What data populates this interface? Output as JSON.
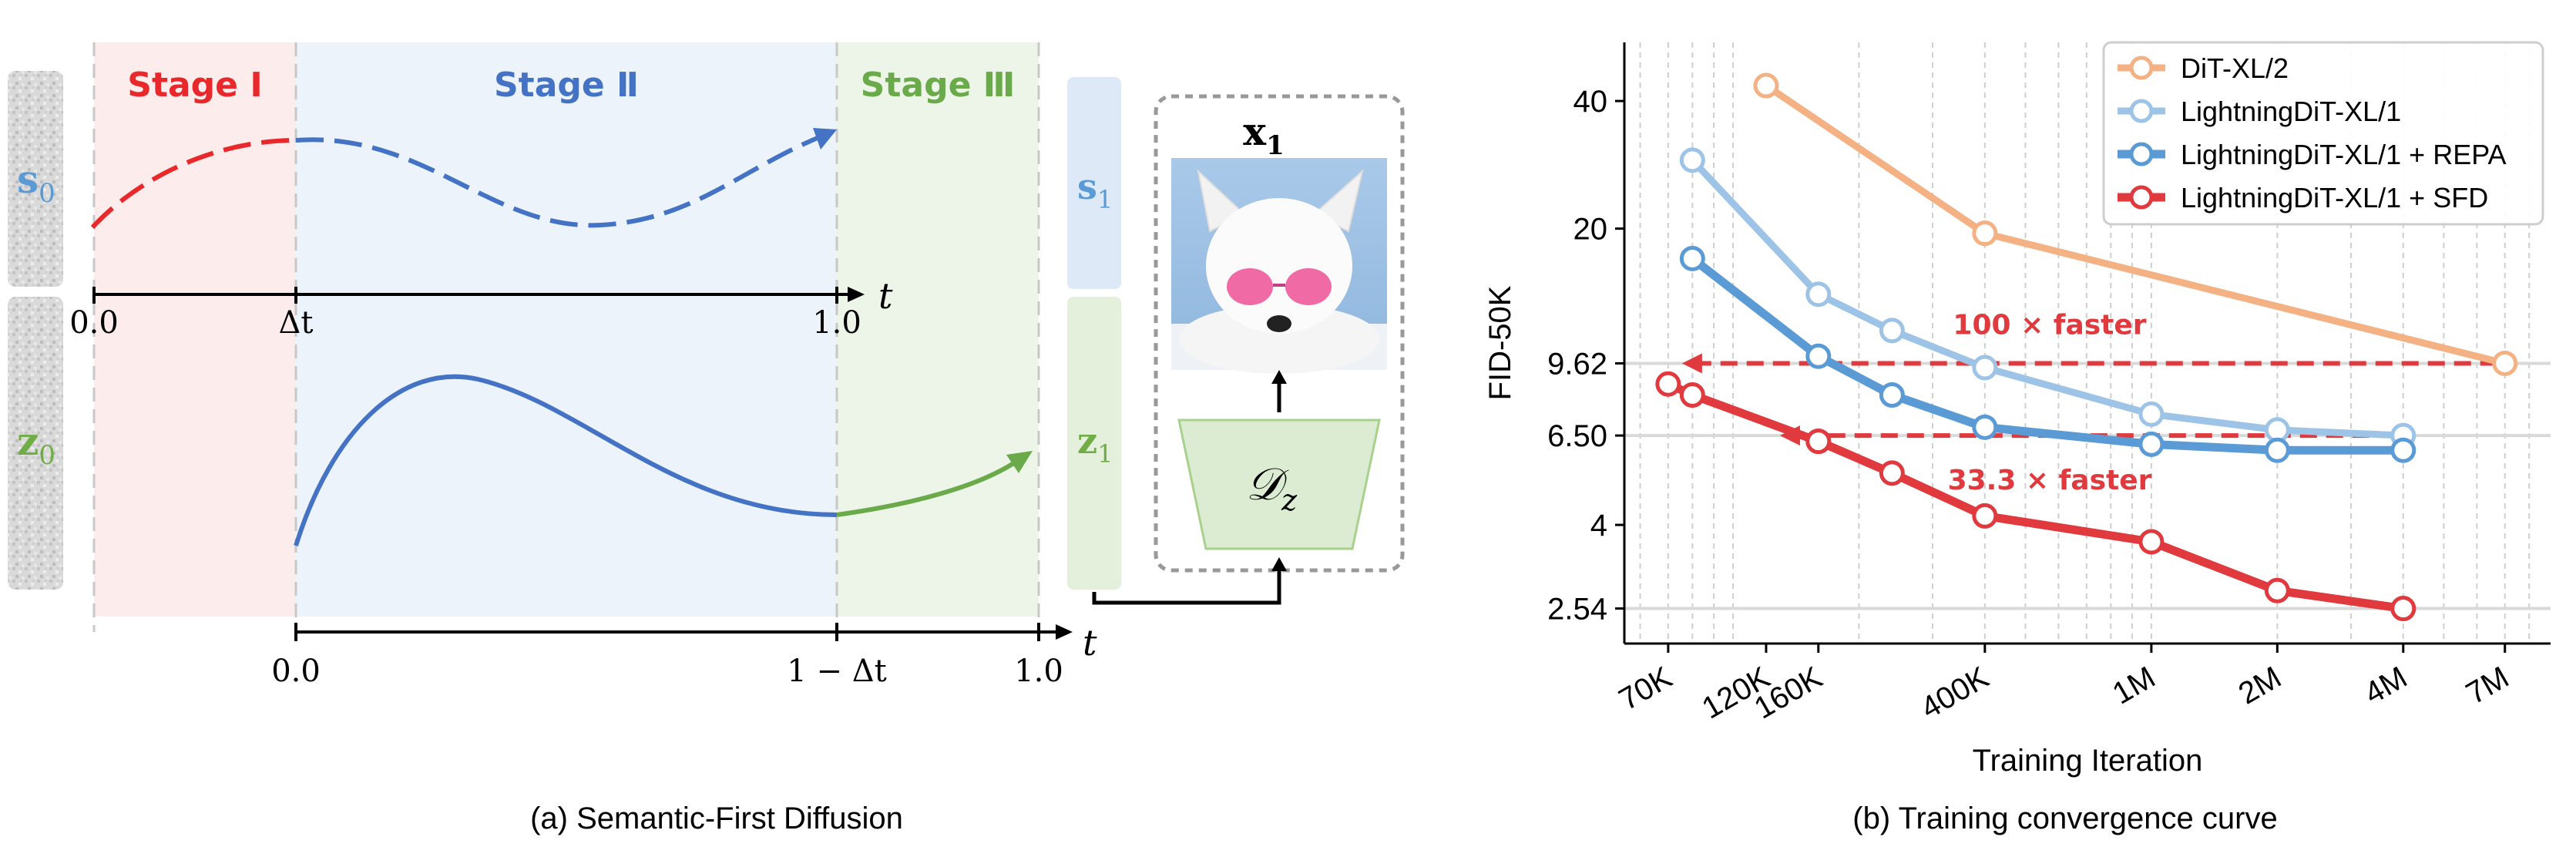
{
  "panel_a": {
    "caption": "(a) Semantic-First Diffusion",
    "stages": [
      "Stage Ⅰ",
      "Stage Ⅱ",
      "Stage Ⅲ"
    ],
    "stage_colors": [
      "#e8282b",
      "#4472c4",
      "#6aaa4a"
    ],
    "s0_label": "s",
    "s0_sub": "0",
    "z0_label": "z",
    "z0_sub": "0",
    "s1_label": "s",
    "s1_sub": "1",
    "z1_label": "z",
    "z1_sub": "1",
    "x1_label": "x",
    "x1_sub": "1",
    "decoder_label": "𝒟",
    "decoder_sub": "z",
    "axis_top_ticks": [
      "0.0",
      "Δt",
      "1.0"
    ],
    "axis_bottom_ticks": [
      "0.0",
      "1 − Δt",
      "1.0"
    ],
    "axis_var": "t",
    "colors": {
      "s": "#5b9bd5",
      "z": "#70ad47",
      "red": "#e8282b",
      "blue": "#4472c4",
      "green": "#6aaa4a"
    }
  },
  "panel_b": {
    "caption": "(b) Training convergence curve"
  },
  "chart_data": {
    "type": "line",
    "title": "",
    "xlabel": "Training Iteration",
    "ylabel": "FID-50K",
    "xscale": "log",
    "yscale": "log",
    "xlim": [
      55000,
      9000000
    ],
    "ylim": [
      2.1,
      55
    ],
    "xticks": [
      70000,
      120000,
      160000,
      400000,
      1000000,
      2000000,
      4000000,
      7000000
    ],
    "xtick_labels": [
      "70K",
      "120K",
      "160K",
      "400K",
      "1M",
      "2M",
      "4M",
      "7M"
    ],
    "yticks": [
      2.54,
      4,
      6.5,
      9.62,
      20,
      40
    ],
    "ytick_labels": [
      "2.54",
      "4",
      "6.50",
      "9.62",
      "20",
      "40"
    ],
    "hlines": [
      2.54,
      6.5,
      9.62
    ],
    "grid": "vertical-dashed",
    "legend_position": "top-right",
    "series": [
      {
        "name": "DiT-XL/2",
        "color": "#f4b183",
        "width": 9,
        "x": [
          120000,
          400000,
          7000000
        ],
        "y": [
          43.5,
          19.5,
          9.62
        ]
      },
      {
        "name": "LightningDiT-XL/1",
        "color": "#9dc3e6",
        "width": 9,
        "x": [
          80000,
          160000,
          240000,
          400000,
          1000000,
          2000000,
          4000000
        ],
        "y": [
          29,
          14,
          11.5,
          9.4,
          7.3,
          6.7,
          6.5
        ]
      },
      {
        "name": "LightningDiT-XL/1 + REPA",
        "color": "#5b9bd5",
        "width": 11,
        "x": [
          80000,
          160000,
          240000,
          400000,
          1000000,
          2000000,
          4000000
        ],
        "y": [
          17,
          10,
          8.1,
          6.8,
          6.2,
          6.0,
          6.0
        ]
      },
      {
        "name": "LightningDiT-XL/1 + SFD",
        "color": "#e0393e",
        "width": 11,
        "x": [
          70000,
          80000,
          160000,
          160000,
          240000,
          400000,
          1000000,
          2000000,
          4000000
        ],
        "y": [
          8.6,
          8.1,
          6.3,
          6.3,
          5.3,
          4.2,
          3.65,
          2.8,
          2.54
        ]
      }
    ],
    "annotations": [
      {
        "text": "100 × faster",
        "from_x": 7000000,
        "to_x": 70000,
        "y": 9.62
      },
      {
        "text": "33.3 × faster",
        "from_x": 4000000,
        "to_x": 120000,
        "y": 6.5
      }
    ]
  }
}
